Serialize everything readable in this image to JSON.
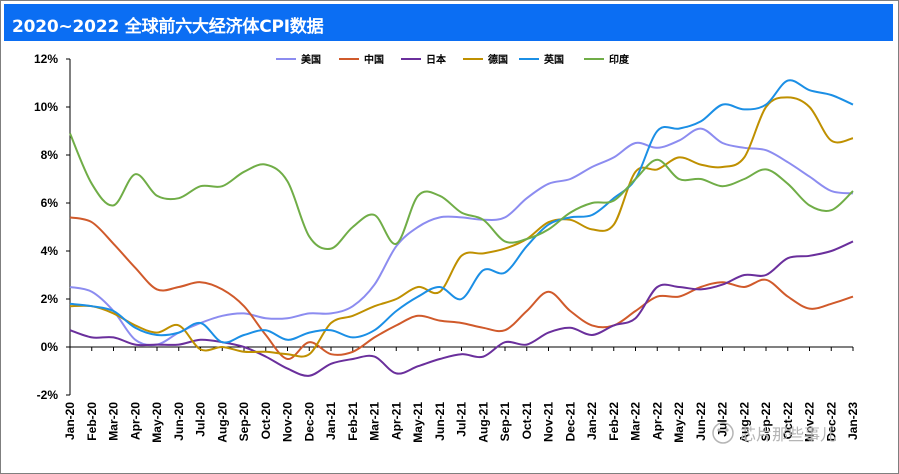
{
  "chart_data": {
    "type": "line",
    "title": "2020~2022 全球前六大经济体CPI数据",
    "y_ticks": [
      "-2%",
      "0%",
      "2%",
      "4%",
      "6%",
      "8%",
      "10%",
      "12%"
    ],
    "ylim": [
      -2,
      12
    ],
    "legend_position": "top",
    "grid": false,
    "categories": [
      "Jan-20",
      "Feb-20",
      "Mar-20",
      "Apr-20",
      "May-20",
      "Jun-20",
      "Jul-20",
      "Aug-20",
      "Sep-20",
      "Oct-20",
      "Nov-20",
      "Dec-20",
      "Jan-21",
      "Feb-21",
      "Mar-21",
      "Apr-21",
      "May-21",
      "Jun-21",
      "Jul-21",
      "Aug-21",
      "Sep-21",
      "Oct-21",
      "Nov-21",
      "Dec-21",
      "Jan-22",
      "Feb-22",
      "Mar-22",
      "Apr-22",
      "May-22",
      "Jun-22",
      "Jul-22",
      "Aug-22",
      "Sep-22",
      "Oct-22",
      "Nov-22",
      "Dec-22",
      "Jan-23"
    ],
    "series": [
      {
        "name": "美国",
        "color": "#8c8cf0",
        "values": [
          2.5,
          2.3,
          1.5,
          0.3,
          0.1,
          0.6,
          1.0,
          1.3,
          1.4,
          1.2,
          1.2,
          1.4,
          1.4,
          1.7,
          2.6,
          4.2,
          5.0,
          5.4,
          5.4,
          5.3,
          5.4,
          6.2,
          6.8,
          7.0,
          7.5,
          7.9,
          8.5,
          8.3,
          8.6,
          9.1,
          8.5,
          8.3,
          8.2,
          7.7,
          7.1,
          6.5,
          6.4
        ]
      },
      {
        "name": "中国",
        "color": "#d05a2b",
        "values": [
          5.4,
          5.2,
          4.3,
          3.3,
          2.4,
          2.5,
          2.7,
          2.4,
          1.7,
          0.5,
          -0.5,
          0.2,
          -0.3,
          -0.2,
          0.4,
          0.9,
          1.3,
          1.1,
          1.0,
          0.8,
          0.7,
          1.5,
          2.3,
          1.5,
          0.9,
          0.9,
          1.5,
          2.1,
          2.1,
          2.5,
          2.7,
          2.5,
          2.8,
          2.1,
          1.6,
          1.8,
          2.1
        ]
      },
      {
        "name": "日本",
        "color": "#6a2f9c",
        "values": [
          0.7,
          0.4,
          0.4,
          0.1,
          0.1,
          0.1,
          0.3,
          0.2,
          0.0,
          -0.4,
          -0.9,
          -1.2,
          -0.7,
          -0.5,
          -0.4,
          -1.1,
          -0.8,
          -0.5,
          -0.3,
          -0.4,
          0.2,
          0.1,
          0.6,
          0.8,
          0.5,
          0.9,
          1.2,
          2.5,
          2.5,
          2.4,
          2.6,
          3.0,
          3.0,
          3.7,
          3.8,
          4.0,
          4.4
        ]
      },
      {
        "name": "德国",
        "color": "#bf9000",
        "values": [
          1.7,
          1.7,
          1.4,
          0.9,
          0.6,
          0.9,
          -0.1,
          0.0,
          -0.2,
          -0.2,
          -0.3,
          -0.3,
          1.0,
          1.3,
          1.7,
          2.0,
          2.5,
          2.3,
          3.8,
          3.9,
          4.1,
          4.5,
          5.2,
          5.3,
          4.9,
          5.1,
          7.3,
          7.4,
          7.9,
          7.6,
          7.5,
          7.9,
          10.0,
          10.4,
          10.0,
          8.6,
          8.7
        ]
      },
      {
        "name": "英国",
        "color": "#1b8fe5",
        "values": [
          1.8,
          1.7,
          1.5,
          0.8,
          0.5,
          0.6,
          1.0,
          0.2,
          0.5,
          0.7,
          0.3,
          0.6,
          0.7,
          0.4,
          0.7,
          1.5,
          2.1,
          2.5,
          2.0,
          3.2,
          3.1,
          4.2,
          5.1,
          5.4,
          5.5,
          6.2,
          7.0,
          9.0,
          9.1,
          9.4,
          10.1,
          9.9,
          10.1,
          11.1,
          10.7,
          10.5,
          10.1
        ]
      },
      {
        "name": "印度",
        "color": "#70ad47",
        "values": [
          8.9,
          6.8,
          5.9,
          7.2,
          6.3,
          6.2,
          6.7,
          6.7,
          7.3,
          7.6,
          6.9,
          4.6,
          4.1,
          5.0,
          5.5,
          4.3,
          6.3,
          6.3,
          5.6,
          5.3,
          4.4,
          4.5,
          4.9,
          5.6,
          6.0,
          6.1,
          7.0,
          7.8,
          7.0,
          7.0,
          6.7,
          7.0,
          7.4,
          6.8,
          5.9,
          5.7,
          6.5
        ]
      }
    ]
  },
  "watermark": "芯片那些事儿"
}
